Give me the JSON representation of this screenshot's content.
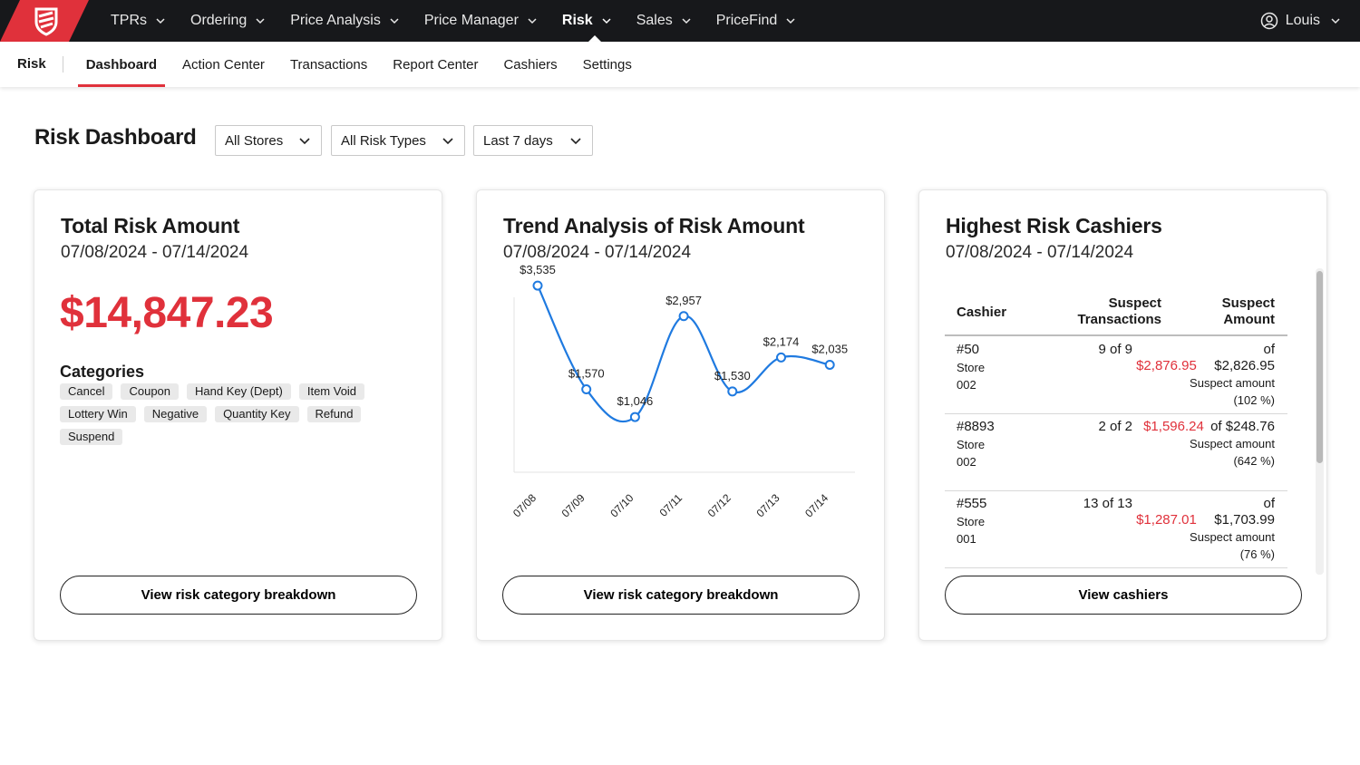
{
  "topnav": {
    "items": [
      {
        "label": "TPRs"
      },
      {
        "label": "Ordering"
      },
      {
        "label": "Price Analysis"
      },
      {
        "label": "Price Manager"
      },
      {
        "label": "Risk",
        "active": true
      },
      {
        "label": "Sales"
      },
      {
        "label": "PriceFind"
      }
    ],
    "user": "Louis"
  },
  "subnav": {
    "section": "Risk",
    "tabs": [
      "Dashboard",
      "Action Center",
      "Transactions",
      "Report Center",
      "Cashiers",
      "Settings"
    ],
    "active": "Dashboard"
  },
  "page": {
    "title": "Risk Dashboard",
    "filters": {
      "store": "All Stores",
      "risk_type": "All Risk Types",
      "range": "Last 7 days"
    }
  },
  "total_card": {
    "title": "Total Risk Amount",
    "date_range": "07/08/2024 - 07/14/2024",
    "total": "$14,847.23",
    "categories_title": "Categories",
    "categories": [
      "Cancel",
      "Coupon",
      "Hand Key (Dept)",
      "Item Void",
      "Lottery Win",
      "Negative",
      "Quantity Key",
      "Refund",
      "Suspend"
    ],
    "button": "View risk category breakdown"
  },
  "trend_card": {
    "title": "Trend Analysis of Risk Amount",
    "date_range": "07/08/2024 - 07/14/2024",
    "button": "View risk category breakdown"
  },
  "chart_data": {
    "type": "line",
    "x": [
      "07/08",
      "07/09",
      "07/10",
      "07/11",
      "07/12",
      "07/13",
      "07/14"
    ],
    "values": [
      3535,
      1570,
      1046,
      2957,
      1530,
      2174,
      2035
    ],
    "labels": [
      "$3,535",
      "$1,570",
      "$1,046",
      "$2,957",
      "$1,530",
      "$2,174",
      "$2,035"
    ],
    "title": "",
    "xlabel": "",
    "ylabel": "",
    "ylim": [
      0,
      4000
    ],
    "grid": false,
    "legend": "none",
    "line_color": "#1f7ae0"
  },
  "cashiers_card": {
    "title": "Highest Risk Cashiers",
    "date_range": "07/08/2024 - 07/14/2024",
    "columns": [
      "Cashier",
      "Suspect Transactions",
      "Suspect Amount"
    ],
    "rows": [
      {
        "cashier": "#50",
        "store": "Store 002",
        "count": "9 of 9",
        "amount": "$2,876.95",
        "of_total": "of $2,826.95",
        "note": "Suspect amount (102 %)"
      },
      {
        "cashier": "#8893",
        "store": "Store 002",
        "count": "2 of 2",
        "amount": "$1,596.24",
        "of_total": "of $248.76",
        "note": "Suspect amount (642 %)"
      },
      {
        "cashier": "#555",
        "store": "Store 001",
        "count": "13 of 13",
        "amount": "$1,287.01",
        "of_total": "of $1,703.99",
        "note": "Suspect amount (76 %)"
      }
    ],
    "button": "View cashiers"
  },
  "colors": {
    "accent": "#e0313b",
    "topbar": "#17181b",
    "line": "#1f7ae0"
  }
}
